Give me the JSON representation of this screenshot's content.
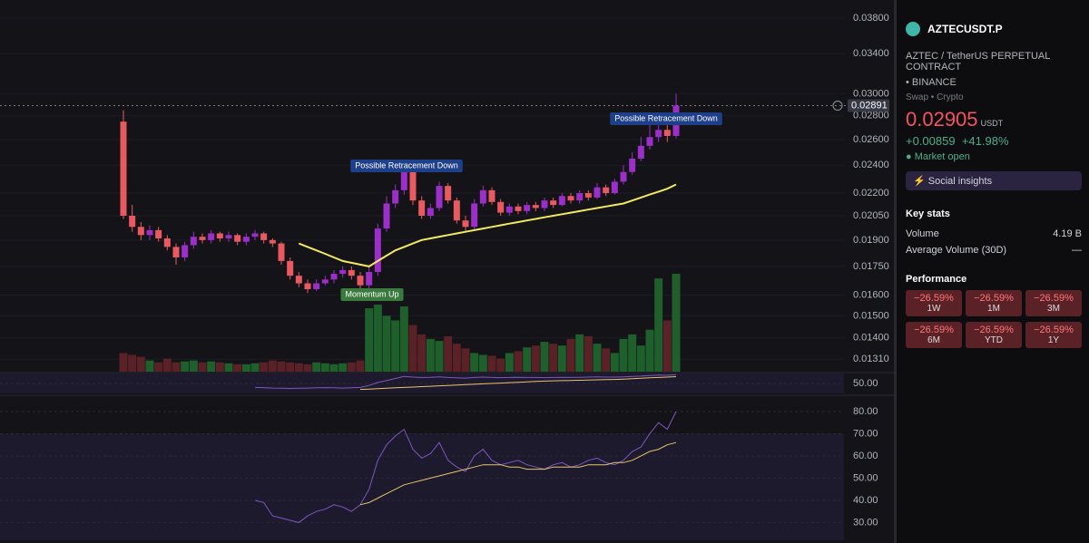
{
  "chart_data": {
    "type": "candlestick",
    "log_scale": true,
    "ylim": [
      0.0126,
      0.0402
    ],
    "yticks": [
      {
        "value": 0.038,
        "label": "0.03800"
      },
      {
        "value": 0.034,
        "label": "0.03400"
      },
      {
        "value": 0.03,
        "label": "0.03000"
      },
      {
        "value": 0.028,
        "label": "0.02800"
      },
      {
        "value": 0.026,
        "label": "0.02600"
      },
      {
        "value": 0.024,
        "label": "0.02400"
      },
      {
        "value": 0.022,
        "label": "0.02200"
      },
      {
        "value": 0.0205,
        "label": "0.02050"
      },
      {
        "value": 0.019,
        "label": "0.01900"
      },
      {
        "value": 0.0175,
        "label": "0.01750"
      },
      {
        "value": 0.016,
        "label": "0.01600"
      },
      {
        "value": 0.015,
        "label": "0.01500"
      },
      {
        "value": 0.014,
        "label": "0.01400"
      },
      {
        "value": 0.0131,
        "label": "0.01310"
      }
    ],
    "last_price": 0.02891,
    "up_color": "#9c2fc9",
    "down_color": "#e85a5f",
    "volume_up_color": "#1f5f2b",
    "volume_down_color": "#5a2127",
    "open": [
      0.0275,
      0.0205,
      0.0198,
      0.0193,
      0.0196,
      0.0191,
      0.0186,
      0.018,
      0.0187,
      0.0192,
      0.019,
      0.0194,
      0.0191,
      0.0193,
      0.0189,
      0.0192,
      0.0194,
      0.019,
      0.0188,
      0.0178,
      0.017,
      0.0166,
      0.0163,
      0.0166,
      0.0168,
      0.0171,
      0.0173,
      0.017,
      0.0165,
      0.0172,
      0.0197,
      0.0213,
      0.0222,
      0.0235,
      0.0215,
      0.0205,
      0.021,
      0.0225,
      0.0215,
      0.0202,
      0.0198,
      0.0213,
      0.0222,
      0.0214,
      0.0207,
      0.0211,
      0.0208,
      0.0212,
      0.021,
      0.0215,
      0.0212,
      0.0218,
      0.0215,
      0.022,
      0.0217,
      0.0224,
      0.022,
      0.0228,
      0.0235,
      0.0245,
      0.0255,
      0.0262,
      0.0268,
      0.0263
    ],
    "high": [
      0.0285,
      0.0212,
      0.0201,
      0.0199,
      0.0198,
      0.0193,
      0.0188,
      0.0189,
      0.0195,
      0.0194,
      0.0196,
      0.0195,
      0.0195,
      0.0194,
      0.0194,
      0.0196,
      0.0195,
      0.0191,
      0.0189,
      0.018,
      0.0172,
      0.0168,
      0.0168,
      0.017,
      0.0173,
      0.0175,
      0.0175,
      0.0172,
      0.0175,
      0.02,
      0.0218,
      0.0226,
      0.024,
      0.0237,
      0.0218,
      0.0213,
      0.0228,
      0.0227,
      0.0217,
      0.0205,
      0.0216,
      0.0225,
      0.0224,
      0.0216,
      0.0213,
      0.0213,
      0.0214,
      0.0214,
      0.0217,
      0.0217,
      0.022,
      0.022,
      0.0222,
      0.0222,
      0.0227,
      0.0226,
      0.023,
      0.024,
      0.025,
      0.0262,
      0.0275,
      0.028,
      0.0275,
      0.03
    ],
    "low": [
      0.0203,
      0.0195,
      0.019,
      0.019,
      0.0189,
      0.0184,
      0.0176,
      0.0178,
      0.0185,
      0.0188,
      0.0188,
      0.0189,
      0.0189,
      0.0187,
      0.0187,
      0.019,
      0.0188,
      0.0186,
      0.0176,
      0.0168,
      0.0164,
      0.0161,
      0.0162,
      0.0165,
      0.0166,
      0.0169,
      0.0168,
      0.0163,
      0.0163,
      0.017,
      0.0195,
      0.021,
      0.0219,
      0.0212,
      0.0203,
      0.0203,
      0.0208,
      0.0213,
      0.02,
      0.0195,
      0.0196,
      0.0211,
      0.0212,
      0.0205,
      0.0205,
      0.0206,
      0.0206,
      0.0208,
      0.0208,
      0.021,
      0.0211,
      0.0213,
      0.0213,
      0.0215,
      0.0216,
      0.0218,
      0.0219,
      0.0226,
      0.0233,
      0.0243,
      0.0252,
      0.0258,
      0.0258,
      0.0261
    ],
    "close": [
      0.0205,
      0.0198,
      0.0193,
      0.0196,
      0.0191,
      0.0186,
      0.018,
      0.0187,
      0.0192,
      0.019,
      0.0194,
      0.0191,
      0.0193,
      0.0189,
      0.0192,
      0.0194,
      0.019,
      0.0188,
      0.0178,
      0.017,
      0.0166,
      0.0163,
      0.0166,
      0.0168,
      0.0171,
      0.0173,
      0.017,
      0.0165,
      0.0172,
      0.0197,
      0.0213,
      0.0222,
      0.0235,
      0.0215,
      0.0205,
      0.021,
      0.0225,
      0.0215,
      0.0202,
      0.0198,
      0.0213,
      0.0222,
      0.0214,
      0.0207,
      0.0211,
      0.0208,
      0.0212,
      0.021,
      0.0215,
      0.0212,
      0.0218,
      0.0215,
      0.022,
      0.0217,
      0.0224,
      0.022,
      0.0228,
      0.0235,
      0.0245,
      0.0255,
      0.0262,
      0.0268,
      0.0263,
      0.02891
    ],
    "volume": [
      20,
      18,
      16,
      12,
      10,
      14,
      10,
      11,
      12,
      10,
      11,
      10,
      9,
      8,
      8,
      9,
      10,
      12,
      11,
      10,
      9,
      8,
      10,
      9,
      8,
      9,
      10,
      12,
      68,
      72,
      60,
      55,
      70,
      50,
      40,
      35,
      33,
      38,
      30,
      25,
      20,
      18,
      17,
      14,
      20,
      22,
      26,
      28,
      32,
      30,
      28,
      35,
      40,
      38,
      30,
      25,
      20,
      35,
      40,
      28,
      45,
      100,
      55,
      105
    ],
    "ma": {
      "color": "#f3ea5d",
      "values": [
        null,
        null,
        null,
        null,
        null,
        null,
        null,
        null,
        null,
        null,
        null,
        null,
        null,
        null,
        null,
        null,
        null,
        null,
        null,
        null,
        0.0188,
        0.0186,
        0.0184,
        0.0182,
        0.018,
        0.0178,
        0.0177,
        0.0176,
        0.0175,
        0.0178,
        0.0181,
        0.0184,
        0.0186,
        0.0188,
        0.019,
        0.0191,
        0.0192,
        0.0193,
        0.0194,
        0.0195,
        0.0196,
        0.0197,
        0.0198,
        0.0199,
        0.02,
        0.0201,
        0.0202,
        0.0203,
        0.0204,
        0.0205,
        0.0206,
        0.0207,
        0.0208,
        0.0209,
        0.021,
        0.0211,
        0.0212,
        0.0213,
        0.0215,
        0.0217,
        0.0219,
        0.0221,
        0.0223,
        0.0226
      ]
    },
    "annotations": [
      "Possible Retracement Down",
      "Momentum Up",
      "Possible Retracement Down"
    ],
    "indicators": [
      {
        "ylim": [
          0,
          100
        ],
        "yticks": [
          {
            "value": 50,
            "label": "50.00"
          }
        ],
        "series": [
          {
            "color": "#7e57c2",
            "values": [
              null,
              null,
              null,
              null,
              null,
              null,
              null,
              null,
              null,
              null,
              null,
              null,
              null,
              null,
              null,
              30,
              29,
              27,
              26,
              25,
              26,
              27,
              28,
              29,
              28,
              27,
              28,
              30,
              40,
              55,
              65,
              75,
              85,
              82,
              80,
              81,
              83,
              80,
              78,
              77,
              80,
              82,
              80,
              79,
              80,
              81,
              80,
              80,
              79,
              80,
              81,
              80,
              81,
              82,
              83,
              82,
              82,
              83,
              85,
              87,
              90,
              92,
              91,
              94
            ]
          },
          {
            "color": "#e9c46a",
            "values": [
              null,
              null,
              null,
              null,
              null,
              null,
              null,
              null,
              null,
              null,
              null,
              null,
              null,
              null,
              null,
              null,
              null,
              null,
              null,
              null,
              null,
              null,
              null,
              null,
              null,
              null,
              null,
              20,
              22,
              24,
              26,
              28,
              30,
              32,
              34,
              36,
              38,
              40,
              42,
              44,
              46,
              48,
              50,
              52,
              54,
              56,
              58,
              60,
              62,
              63,
              64,
              65,
              66,
              67,
              68,
              69,
              70,
              72,
              74,
              76,
              78,
              80,
              82,
              84
            ]
          }
        ]
      },
      {
        "ylim": [
          22,
          85.7
        ],
        "yticks": [
          {
            "value": 80,
            "label": "80.00"
          },
          {
            "value": 70,
            "label": "70.00"
          },
          {
            "value": 60,
            "label": "60.00"
          },
          {
            "value": 50,
            "label": "50.00"
          },
          {
            "value": 40,
            "label": "40.00"
          },
          {
            "value": 30,
            "label": "30.00"
          }
        ],
        "band": [
          30,
          70
        ],
        "series": [
          {
            "color": "#7e57c2",
            "values": [
              null,
              null,
              null,
              null,
              null,
              null,
              null,
              null,
              null,
              null,
              null,
              null,
              null,
              null,
              null,
              40,
              39,
              33,
              32,
              31,
              30,
              33,
              35,
              36,
              38,
              37,
              35,
              38,
              45,
              58,
              65,
              69,
              72,
              63,
              59,
              61,
              66,
              58,
              55,
              53,
              60,
              63,
              58,
              56,
              57,
              58,
              56,
              55,
              54,
              56,
              57,
              55,
              56,
              58,
              59,
              57,
              56,
              58,
              62,
              64,
              70,
              75,
              72,
              80
            ]
          },
          {
            "color": "#e9c46a",
            "values": [
              null,
              null,
              null,
              null,
              null,
              null,
              null,
              null,
              null,
              null,
              null,
              null,
              null,
              null,
              null,
              null,
              null,
              null,
              null,
              null,
              null,
              null,
              null,
              null,
              null,
              null,
              null,
              38,
              39,
              41,
              43,
              45,
              47,
              48,
              49,
              50,
              51,
              52,
              53,
              54,
              55,
              56,
              56,
              56,
              55,
              55,
              54,
              54,
              54,
              55,
              55,
              55,
              55,
              56,
              56,
              56,
              57,
              57,
              58,
              60,
              62,
              63,
              65,
              66
            ]
          }
        ]
      }
    ]
  },
  "panel": {
    "symbol": "AZTECUSDT.P",
    "description": "AZTEC / TetherUS PERPETUAL CONTRACT",
    "exchange": "BINANCE",
    "tags": [
      "Swap",
      "Crypto"
    ],
    "price": "0.02905",
    "currency": "USDT",
    "change": "+0.00859",
    "change_pct": "+41.98%",
    "status": "Market open",
    "social": "Social insights",
    "key_stats": {
      "title": "Key stats",
      "rows": [
        {
          "label": "Volume",
          "value": "4.19 B"
        },
        {
          "label": "Average Volume (30D)",
          "value": "—"
        }
      ]
    },
    "performance": {
      "title": "Performance",
      "cells": [
        {
          "value": "−26.59%",
          "period": "1W"
        },
        {
          "value": "−26.59%",
          "period": "1M"
        },
        {
          "value": "−26.59%",
          "period": "3M"
        },
        {
          "value": "−26.59%",
          "period": "6M"
        },
        {
          "value": "−26.59%",
          "period": "YTD"
        },
        {
          "value": "−26.59%",
          "period": "1Y"
        }
      ]
    }
  }
}
